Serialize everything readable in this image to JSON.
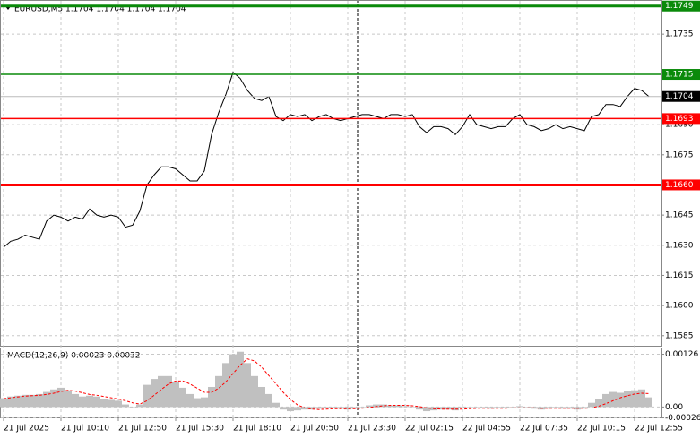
{
  "chart_data": [
    {
      "type": "line",
      "title": "EURUSD,M5  1.1704 1.1704 1.1704 1.1704",
      "categories": [
        "21 Jul 2025",
        null,
        null,
        null,
        null,
        null,
        null,
        null,
        "21 Jul 10:10",
        null,
        null,
        null,
        null,
        null,
        null,
        null,
        "21 Jul 12:50",
        null,
        null,
        null,
        null,
        null,
        null,
        null,
        "21 Jul 15:30",
        null,
        null,
        null,
        null,
        null,
        null,
        null,
        "21 Jul 18:10",
        null,
        null,
        null,
        null,
        null,
        null,
        null,
        "21 Jul 20:50",
        null,
        null,
        null,
        null,
        null,
        null,
        null,
        "21 Jul 23:30",
        null,
        null,
        null,
        null,
        null,
        null,
        null,
        "22 Jul 02:15",
        null,
        null,
        null,
        null,
        null,
        null,
        null,
        "22 Jul 04:55",
        null,
        null,
        null,
        null,
        null,
        null,
        null,
        "22 Jul 07:35",
        null,
        null,
        null,
        null,
        null,
        null,
        null,
        "22 Jul 10:15",
        null,
        null,
        null,
        null,
        null,
        null,
        null,
        "22 Jul 12:55",
        null,
        null
      ],
      "values": [
        1.1629,
        1.1632,
        1.1633,
        1.1635,
        1.1634,
        1.1633,
        1.1642,
        1.1645,
        1.1644,
        1.1642,
        1.1644,
        1.1643,
        1.1648,
        1.1645,
        1.1644,
        1.1645,
        1.1644,
        1.1639,
        1.164,
        1.1647,
        1.166,
        1.1665,
        1.1669,
        1.1669,
        1.1668,
        1.1665,
        1.1662,
        1.1662,
        1.1667,
        1.1685,
        1.1696,
        1.1705,
        1.1716,
        1.1713,
        1.1707,
        1.1703,
        1.1702,
        1.1704,
        1.1694,
        1.1692,
        1.1695,
        1.1694,
        1.1695,
        1.1692,
        1.1694,
        1.1695,
        1.1693,
        1.1692,
        1.1693,
        1.1694,
        1.1695,
        1.1695,
        1.1694,
        1.1693,
        1.1695,
        1.1695,
        1.1694,
        1.1695,
        1.1689,
        1.1686,
        1.1689,
        1.1689,
        1.1688,
        1.1685,
        1.1689,
        1.1695,
        1.169,
        1.1689,
        1.1688,
        1.1689,
        1.1689,
        1.1693,
        1.1695,
        1.169,
        1.1689,
        1.1687,
        1.1688,
        1.169,
        1.1688,
        1.1689,
        1.1688,
        1.1687,
        1.1694,
        1.1695,
        1.17,
        1.17,
        1.1699,
        1.1704,
        1.1708,
        1.1707,
        1.1704
      ],
      "color": "#000000",
      "ylim": [
        1.158,
        1.1752
      ],
      "yticks": [
        1.1735,
        {
          "value": 1.169,
          "label": "1.1690"
        },
        1.1675,
        1.1645,
        {
          "value": 1.163,
          "label": "1.1630"
        },
        1.1615,
        {
          "value": 1.16,
          "label": "1.1600"
        },
        1.1585
      ],
      "grid": true,
      "levels": [
        {
          "value": 1.1749,
          "color": "#0a8a0a",
          "thick": true
        },
        {
          "value": 1.1715,
          "color": "#0a8a0a",
          "thick": false
        },
        {
          "value": 1.1693,
          "color": "#ff0000",
          "thick": false
        },
        {
          "value": 1.166,
          "label": "1.1660",
          "color": "#ff0000",
          "thick": true
        }
      ],
      "last": 1.1704
    },
    {
      "type": "macd",
      "title": "MACD(12,26,9) 0.00023 0.00032",
      "series": [
        {
          "kind": "bar",
          "color": "#c0c0c0",
          "values": [
            0.00021,
            0.00025,
            0.00027,
            0.00029,
            0.00029,
            0.00031,
            0.00036,
            0.00042,
            0.00046,
            0.0004,
            0.00031,
            0.00025,
            0.00027,
            0.00025,
            0.00019,
            0.00017,
            0.00015,
            6e-05,
            0,
            6e-05,
            0.00053,
            0.00067,
            0.00074,
            0.00074,
            0.00061,
            0.00046,
            0.00031,
            0.00021,
            0.00023,
            0.00048,
            0.00074,
            0.00105,
            0.00126,
            0.00132,
            0.00105,
            0.00074,
            0.00048,
            0.00031,
            0.0001,
            -6e-05,
            -0.0001,
            -8e-05,
            -6e-05,
            -6e-05,
            -4e-05,
            -2e-05,
            -2e-05,
            -4e-05,
            -6e-05,
            -4e-05,
            0,
            4e-05,
            6e-05,
            6e-05,
            4e-05,
            4e-05,
            2e-05,
            0,
            -6e-05,
            -0.0001,
            -8e-05,
            -6e-05,
            -6e-05,
            -8e-05,
            -2e-05,
            0,
            0,
            -2e-05,
            -4e-05,
            -2e-05,
            -2e-05,
            0,
            2e-05,
            0,
            -4e-05,
            -6e-05,
            -4e-05,
            -2e-05,
            -4e-05,
            -4e-05,
            -6e-05,
            -4e-05,
            0.0001,
            0.00019,
            0.00031,
            0.00036,
            0.00034,
            0.00038,
            0.0004,
            0.00042,
            0.00023
          ]
        },
        {
          "kind": "line",
          "color": "#ff0000",
          "values": [
            0.0002,
            0.00022,
            0.00024,
            0.00026,
            0.00027,
            0.00028,
            0.0003,
            0.00033,
            0.00037,
            0.0004,
            0.00038,
            0.00034,
            0.0003,
            0.00028,
            0.00025,
            0.00022,
            0.00019,
            0.00015,
            0.0001,
            7e-05,
            0.00015,
            0.00028,
            0.00042,
            0.00055,
            0.00062,
            0.00062,
            0.00055,
            0.00045,
            0.00035,
            0.00035,
            0.00045,
            0.0006,
            0.0008,
            0.001,
            0.00115,
            0.0011,
            0.00095,
            0.00075,
            0.00055,
            0.00035,
            0.00018,
            5e-05,
            -2e-05,
            -5e-05,
            -6e-05,
            -5e-05,
            -4e-05,
            -4e-05,
            -4e-05,
            -4e-05,
            -3e-05,
            -1e-05,
            1e-05,
            3e-05,
            4e-05,
            4e-05,
            4e-05,
            3e-05,
            1e-05,
            -2e-05,
            -4e-05,
            -5e-05,
            -5e-05,
            -5e-05,
            -5e-05,
            -4e-05,
            -3e-05,
            -3e-05,
            -3e-05,
            -3e-05,
            -3e-05,
            -2e-05,
            -2e-05,
            -2e-05,
            -2e-05,
            -3e-05,
            -3e-05,
            -3e-05,
            -3e-05,
            -3e-05,
            -3e-05,
            -3e-05,
            -2e-05,
            2e-05,
            8e-05,
            0.00015,
            0.00022,
            0.00027,
            0.00031,
            0.00033,
            0.00032
          ]
        }
      ],
      "ylim": [
        -0.00027,
        0.0014
      ],
      "yticks": [
        0.00126,
        {
          "value": 0,
          "label": "0.00"
        },
        -0.00026
      ],
      "grid": true
    }
  ]
}
